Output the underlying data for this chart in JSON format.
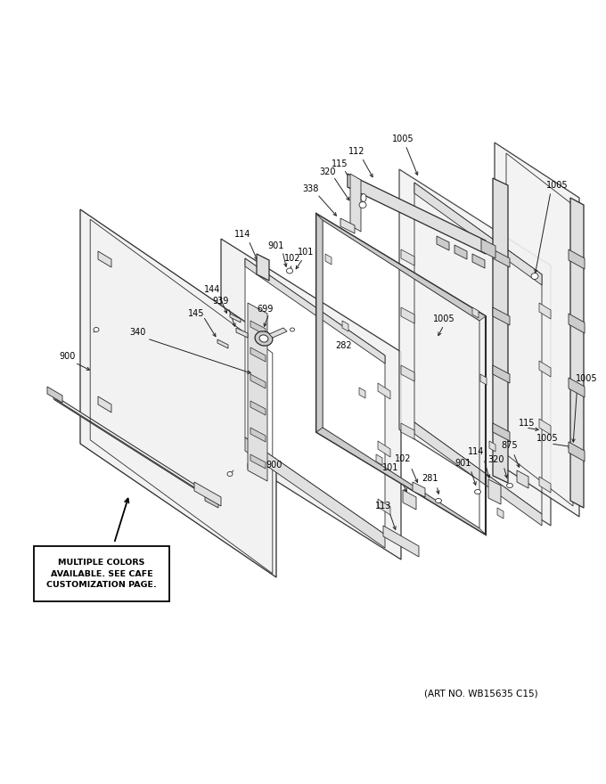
{
  "bg_color": "#ffffff",
  "art_no": "(ART NO. WB15635 C15)",
  "note_text": "MULTIPLE COLORS\nAVAILABLE. SEE CAFE\nCUSTOMIZATION PAGE.",
  "fig_width": 6.8,
  "fig_height": 8.8,
  "dpi": 100,
  "label_fontsize": 7.0,
  "art_fontsize": 7.5,
  "note_fontsize": 6.8
}
